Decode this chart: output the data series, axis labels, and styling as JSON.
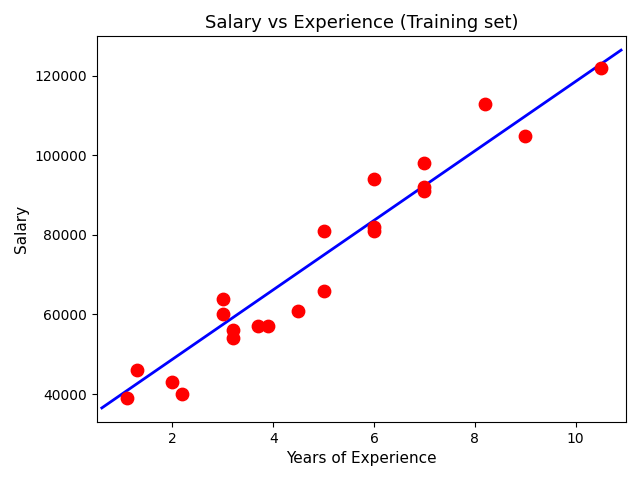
{
  "scatter_x": [
    1.1,
    1.3,
    2.0,
    2.2,
    3.0,
    3.0,
    3.2,
    3.2,
    3.7,
    3.9,
    4.5,
    5.0,
    5.0,
    6.0,
    6.0,
    6.0,
    7.0,
    7.0,
    7.0,
    8.2,
    9.0,
    10.5
  ],
  "scatter_y": [
    39000,
    46000,
    43000,
    40000,
    60000,
    64000,
    56000,
    54000,
    57000,
    57000,
    61000,
    81000,
    66000,
    81000,
    94000,
    82000,
    92000,
    91000,
    98000,
    113000,
    105000,
    122000
  ],
  "scatter_color": "red",
  "scatter_size": 80,
  "line_x": [
    0.6,
    10.9
  ],
  "line_y": [
    36500,
    126500
  ],
  "line_color": "blue",
  "line_width": 2,
  "title": "Salary vs Experience (Training set)",
  "xlabel": "Years of Experience",
  "ylabel": "Salary",
  "xlim": [
    0.5,
    11.0
  ],
  "ylim": [
    33000,
    130000
  ],
  "xticks": [
    2,
    4,
    6,
    8,
    10
  ],
  "yticks": [
    40000,
    60000,
    80000,
    100000,
    120000
  ],
  "bg_color": "white",
  "title_fontsize": 13,
  "label_fontsize": 11,
  "tick_fontsize": 10
}
